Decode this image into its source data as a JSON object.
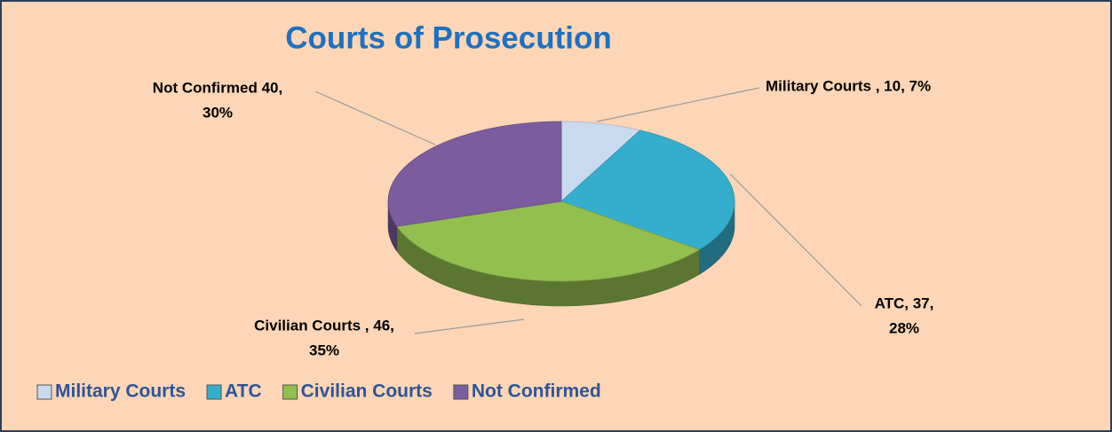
{
  "chart_data": {
    "type": "pie",
    "title": "Courts of Prosecution",
    "categories": [
      "Military Courts",
      "ATC",
      "Civilian Courts",
      "Not Confirmed"
    ],
    "values": [
      10,
      37,
      46,
      40
    ],
    "value_labels": [
      [
        "Military Courts , 10, 7%"
      ],
      [
        "ATC, 37,",
        "28%"
      ],
      [
        "Civilian Courts , 46,",
        "35%"
      ],
      [
        "Not Confirmed  40,",
        "30%"
      ]
    ],
    "colors": [
      "#c9d9ee",
      "#35aecd",
      "#93bf4f",
      "#7b5c9f"
    ],
    "legend": "bottom"
  }
}
